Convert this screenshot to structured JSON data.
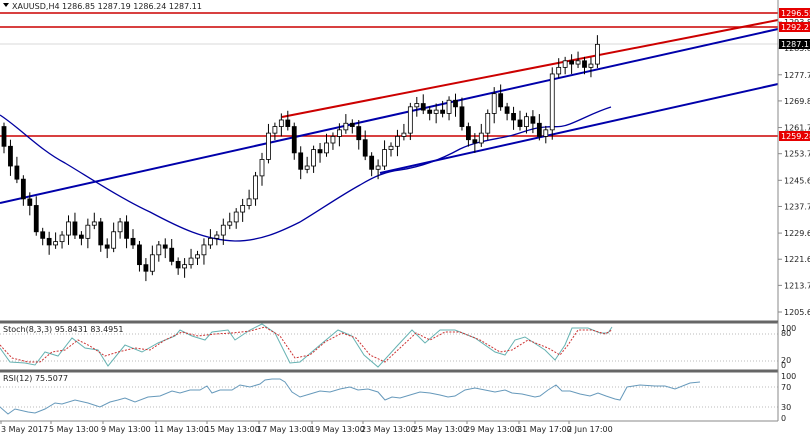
{
  "header": {
    "symbol_label": "XAUUSD,H4",
    "ohlc": "1286.85 1287.19 1286.24 1287.11",
    "dropdown_icon": "triangle-down-icon"
  },
  "colors": {
    "bull_fill": "#ffffff",
    "bear_fill": "#000000",
    "candle_outline": "#000000",
    "ma_line": "#0000a0",
    "trendline_blue": "#0000aa",
    "trendline_red": "#cc0000",
    "hline_red": "#cc0000",
    "stoch_main": "#66b2b2",
    "stoch_signal": "#cc3333",
    "rsi_line": "#6699bb",
    "current_price_bg": "#000000",
    "level_label_bg": "#e60000",
    "panel_separator": "#666666"
  },
  "price_axis": {
    "ticks": [
      "1293.80",
      "1285.85",
      "1277.75",
      "1269.80",
      "1261.70",
      "1253.75",
      "1245.65",
      "1237.70",
      "1229.60",
      "1221.65",
      "1213.70",
      "1205.60"
    ],
    "level_labels": [
      {
        "value": "1296.55",
        "type": "resistance"
      },
      {
        "value": "1292.21",
        "type": "resistance"
      },
      {
        "value": "1259.28",
        "type": "support"
      }
    ],
    "current_price": "1287.11"
  },
  "stoch": {
    "label": "Stoch(8,3,3) 95.8431 83.4951",
    "axis": [
      "100",
      "80",
      "20",
      "0"
    ]
  },
  "rsi": {
    "label": "RSI(12) 75.5077",
    "axis": [
      "100",
      "70",
      "30",
      "0"
    ]
  },
  "time_axis": {
    "labels": [
      "3 May 2017",
      "5 May 13:00",
      "9 May 13:00",
      "11 May 13:00",
      "15 May 13:00",
      "17 May 13:00",
      "19 May 13:00",
      "23 May 13:00",
      "25 May 13:00",
      "29 May 13:00",
      "31 May 17:00",
      "2 Jun 17:00"
    ]
  },
  "chart_data": {
    "type": "candlestick",
    "title": "XAUUSD,H4 1286.85 1287.19 1286.24 1287.11",
    "symbol": "XAUUSD",
    "timeframe": "H4",
    "ylim": [
      1205.6,
      1296.55
    ],
    "x_tick_labels": [
      "3 May 2017",
      "5 May 13:00",
      "9 May 13:00",
      "11 May 13:00",
      "15 May 13:00",
      "17 May 13:00",
      "19 May 13:00",
      "23 May 13:00",
      "25 May 13:00",
      "29 May 13:00",
      "31 May 17:00",
      "2 Jun 17:00"
    ],
    "y_tick_labels": [
      "1293.80",
      "1285.85",
      "1277.75",
      "1269.80",
      "1261.70",
      "1253.75",
      "1245.65",
      "1237.70",
      "1229.60",
      "1221.65",
      "1213.70",
      "1205.60"
    ],
    "last_ohlc": {
      "open": 1286.85,
      "high": 1287.19,
      "low": 1286.24,
      "close": 1287.11
    },
    "horizontal_levels": [
      1296.55,
      1292.21,
      1259.28
    ],
    "trendlines": [
      {
        "color": "blue",
        "from": [
          0,
          1238.5
        ],
        "to": [
          778,
          1294.5
        ],
        "desc": "upper channel / long trendline"
      },
      {
        "color": "red",
        "from": [
          282,
          1264.5
        ],
        "to": [
          778,
          1296.0
        ],
        "desc": "upper parallel resistance"
      },
      {
        "color": "blue",
        "from": [
          380,
          1251.5
        ],
        "to": [
          778,
          1273.0
        ],
        "desc": "lower channel support"
      }
    ],
    "closes_approx": [
      1256,
      1250,
      1246,
      1240,
      1238,
      1230,
      1228,
      1226,
      1227,
      1229,
      1233,
      1229,
      1228,
      1232,
      1233,
      1226,
      1225,
      1230,
      1233,
      1228,
      1226,
      1220,
      1218,
      1223,
      1226,
      1225,
      1221,
      1219,
      1220,
      1222,
      1223,
      1226,
      1228,
      1229,
      1232,
      1233,
      1236,
      1238,
      1240,
      1247,
      1252,
      1260,
      1262,
      1264,
      1262,
      1254,
      1249,
      1250,
      1255,
      1254,
      1257,
      1259,
      1261,
      1263,
      1262,
      1258,
      1253,
      1249,
      1250,
      1255,
      1256,
      1259,
      1260,
      1268,
      1269,
      1267,
      1266,
      1267,
      1266,
      1270,
      1268,
      1262,
      1258,
      1257,
      1260,
      1266,
      1272,
      1268,
      1266,
      1264,
      1262,
      1265,
      1263,
      1259,
      1261,
      1278,
      1280,
      1282,
      1281,
      1282,
      1280,
      1281,
      1287
    ],
    "series": [
      {
        "name": "Stoch %K",
        "values_last": 95.8431
      },
      {
        "name": "Stoch %D",
        "values_last": 83.4951
      },
      {
        "name": "RSI(12)",
        "values_last": 75.5077
      }
    ],
    "indicators": [
      "Moving Average (blue)",
      "Stoch(8,3,3)",
      "RSI(12)"
    ]
  }
}
